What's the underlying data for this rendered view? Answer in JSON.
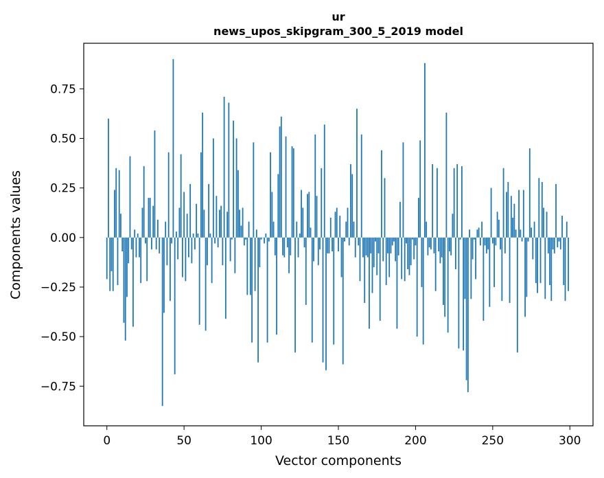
{
  "chart_data": {
    "type": "bar",
    "title_line1": "ur",
    "title_line2": "news_upos_skipgram_300_5_2019 model",
    "xlabel": "Vector components",
    "ylabel": "Components values",
    "xlim": [
      -15,
      315
    ],
    "ylim": [
      -0.95,
      0.98
    ],
    "xticks": [
      0,
      50,
      100,
      150,
      200,
      250,
      300
    ],
    "yticks": [
      -0.75,
      -0.5,
      -0.25,
      0.0,
      0.25,
      0.5,
      0.75
    ],
    "ytick_labels": [
      "−0.75",
      "−0.50",
      "−0.25",
      "0.00",
      "0.25",
      "0.50",
      "0.75"
    ],
    "bar_color": "#1f77b4",
    "grid": false,
    "values": [
      -0.21,
      0.6,
      -0.27,
      -0.17,
      -0.27,
      0.24,
      0.35,
      -0.24,
      0.34,
      0.12,
      -0.07,
      -0.43,
      -0.52,
      -0.3,
      -0.13,
      0.41,
      -0.06,
      -0.45,
      0.04,
      -0.1,
      0.02,
      -0.1,
      -0.23,
      0.15,
      0.36,
      -0.03,
      -0.22,
      0.2,
      0.2,
      -0.06,
      0.16,
      0.54,
      -0.06,
      0.09,
      -0.08,
      0.0,
      -0.85,
      -0.38,
      0.08,
      -0.14,
      0.43,
      -0.32,
      -0.03,
      0.9,
      -0.69,
      0.03,
      -0.11,
      0.15,
      0.42,
      -0.2,
      0.23,
      -0.22,
      0.12,
      -0.1,
      0.27,
      -0.13,
      0.02,
      -0.06,
      0.17,
      0.02,
      -0.44,
      0.43,
      0.63,
      0.14,
      -0.47,
      -0.14,
      0.27,
      0.02,
      -0.23,
      0.5,
      -0.03,
      0.21,
      -0.05,
      0.14,
      0.16,
      -0.14,
      0.71,
      -0.41,
      0.13,
      0.68,
      -0.12,
      -0.01,
      0.59,
      -0.18,
      0.5,
      0.34,
      0.14,
      0.06,
      0.15,
      -0.04,
      -0.01,
      -0.29,
      0.08,
      -0.29,
      -0.53,
      0.48,
      -0.27,
      0.04,
      -0.63,
      -0.15,
      -0.01,
      0.0,
      -0.03,
      0.02,
      -0.53,
      -0.02,
      0.43,
      0.23,
      0.08,
      -0.09,
      -0.49,
      0.32,
      0.56,
      0.61,
      -0.09,
      -0.1,
      0.51,
      -0.05,
      -0.18,
      -0.09,
      0.46,
      0.45,
      -0.58,
      0.08,
      -0.1,
      0.02,
      0.24,
      0.15,
      -0.05,
      -0.34,
      0.22,
      0.23,
      0.05,
      -0.53,
      -0.12,
      0.52,
      0.21,
      -0.14,
      -0.06,
      0.35,
      -0.63,
      0.57,
      -0.67,
      -0.08,
      -0.08,
      0.1,
      -0.07,
      -0.54,
      0.13,
      0.15,
      -0.07,
      0.11,
      -0.2,
      -0.64,
      -0.02,
      0.08,
      0.15,
      -0.04,
      0.37,
      0.32,
      0.08,
      -0.1,
      0.65,
      -0.04,
      -0.22,
      0.52,
      -0.1,
      -0.33,
      -0.09,
      -0.1,
      -0.46,
      -0.08,
      -0.28,
      -0.15,
      -0.02,
      -0.19,
      -0.08,
      -0.42,
      0.44,
      -0.12,
      0.3,
      -0.24,
      -0.08,
      -0.2,
      -0.08,
      -0.04,
      -0.02,
      -0.12,
      -0.46,
      -0.09,
      0.18,
      -0.21,
      0.48,
      -0.22,
      -0.03,
      -0.16,
      -0.19,
      -0.14,
      -0.01,
      -0.11,
      -0.04,
      -0.5,
      0.2,
      0.49,
      -0.25,
      -0.54,
      0.88,
      0.08,
      -0.09,
      -0.05,
      -0.06,
      0.37,
      -0.08,
      -0.27,
      0.35,
      -0.07,
      -0.13,
      -0.1,
      -0.34,
      -0.4,
      0.63,
      -0.48,
      -0.07,
      -0.09,
      0.12,
      0.35,
      -0.16,
      0.37,
      -0.56,
      -0.01,
      0.36,
      -0.57,
      -0.31,
      -0.72,
      -0.78,
      0.04,
      -0.31,
      -0.11,
      -0.01,
      -0.21,
      0.04,
      0.05,
      -0.04,
      0.08,
      -0.42,
      -0.04,
      -0.08,
      -0.06,
      -0.35,
      0.25,
      -0.03,
      -0.25,
      -0.04,
      0.13,
      0.09,
      -0.06,
      -0.32,
      0.35,
      -0.08,
      0.23,
      0.28,
      -0.33,
      0.21,
      0.1,
      0.17,
      0.04,
      -0.58,
      0.24,
      0.04,
      -0.02,
      0.24,
      -0.4,
      -0.3,
      -0.02,
      0.45,
      0.05,
      -0.11,
      0.08,
      -0.23,
      -0.28,
      0.3,
      -0.23,
      0.28,
      0.15,
      -0.31,
      0.13,
      -0.08,
      -0.24,
      -0.32,
      -0.06,
      -0.08,
      0.27,
      -0.05,
      -0.02,
      -0.06,
      0.11,
      -0.24,
      -0.32,
      0.08,
      -0.27
    ]
  }
}
